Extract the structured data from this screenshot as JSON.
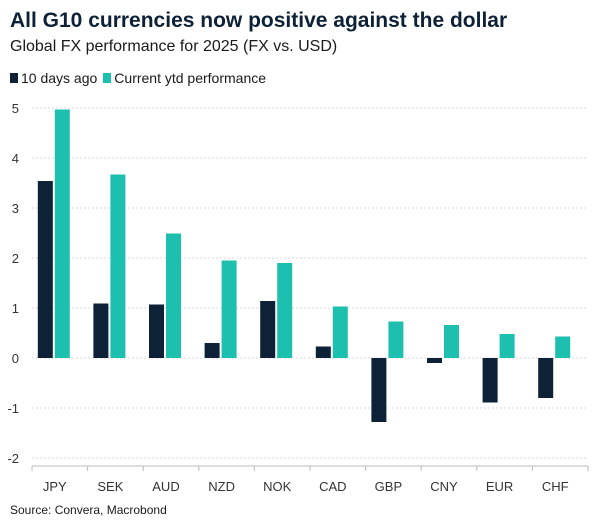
{
  "title": "All G10 currencies now positive against the dollar",
  "subtitle": "Global FX performance for 2025 (FX vs. USD)",
  "legend": [
    {
      "label": "10 days ago",
      "color": "#0d2137"
    },
    {
      "label": "Current ytd performance",
      "color": "#1dbfaf"
    }
  ],
  "source": "Source: Convera, Macrobond",
  "colors": {
    "series1": "#0d2137",
    "series2": "#1dbfaf",
    "grid": "#d8d8d8",
    "axis": "#bbbbbb"
  },
  "chart_data": {
    "type": "bar",
    "title": "All G10 currencies now positive against the dollar",
    "subtitle": "Global FX performance for 2025 (FX vs. USD)",
    "categories": [
      "JPY",
      "SEK",
      "AUD",
      "NZD",
      "NOK",
      "CAD",
      "GBP",
      "CNY",
      "EUR",
      "CHF"
    ],
    "series": [
      {
        "name": "10 days ago",
        "values": [
          3.54,
          1.09,
          1.07,
          0.3,
          1.14,
          0.23,
          -1.28,
          -0.1,
          -0.89,
          -0.8
        ]
      },
      {
        "name": "Current ytd performance",
        "values": [
          4.97,
          3.67,
          2.49,
          1.95,
          1.9,
          1.03,
          0.73,
          0.66,
          0.48,
          0.43
        ]
      }
    ],
    "yticks": [
      "5",
      "4",
      "3",
      "2",
      "1",
      "0",
      "-1",
      "-2"
    ],
    "ylim": [
      -2,
      5
    ],
    "xlabel": "",
    "ylabel": "",
    "grid": true,
    "legend_position": "top-left"
  }
}
